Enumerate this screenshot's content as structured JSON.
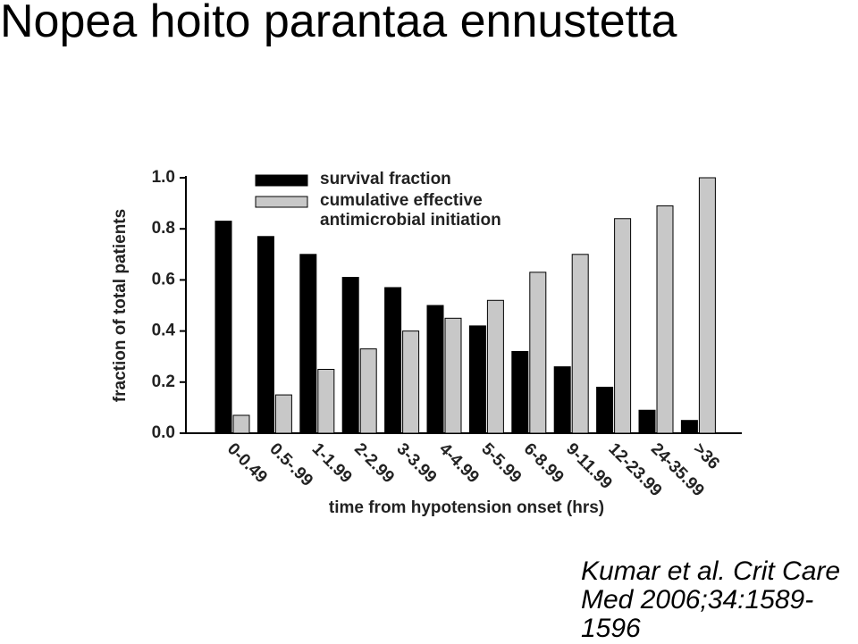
{
  "slide": {
    "title": "Nopea hoito parantaa ennustetta",
    "citation": "Kumar et al. Crit Care Med 2006;34:1589-1596"
  },
  "chart_data": {
    "type": "bar",
    "x_label": "time from hypotension onset (hrs)",
    "y_label": "fraction of total patients",
    "categories": [
      "0-0.49",
      "0.5-.99",
      "1-1.99",
      "2-2.99",
      "3-3.99",
      "4-4.99",
      "5-5.99",
      "6-8.99",
      "9-11.99",
      "12-23.99",
      "24-35.99",
      ">36"
    ],
    "series": [
      {
        "name": "survival fraction",
        "color": "#000000",
        "values": [
          0.83,
          0.77,
          0.7,
          0.61,
          0.57,
          0.5,
          0.42,
          0.32,
          0.26,
          0.18,
          0.09,
          0.05
        ]
      },
      {
        "name": "cumulative effective antimicrobial initiation",
        "color": "#c8c8c8",
        "values": [
          0.07,
          0.15,
          0.25,
          0.33,
          0.4,
          0.45,
          0.52,
          0.63,
          0.7,
          0.84,
          0.89,
          1.0
        ]
      }
    ],
    "ylim": [
      0,
      1.0
    ],
    "yticks": [
      {
        "value": 0,
        "label": "0.0"
      },
      0.2,
      0.4,
      0.6,
      0.8,
      {
        "value": 1.0,
        "label": "1.0"
      }
    ],
    "grid": false,
    "legend": "top-left"
  }
}
